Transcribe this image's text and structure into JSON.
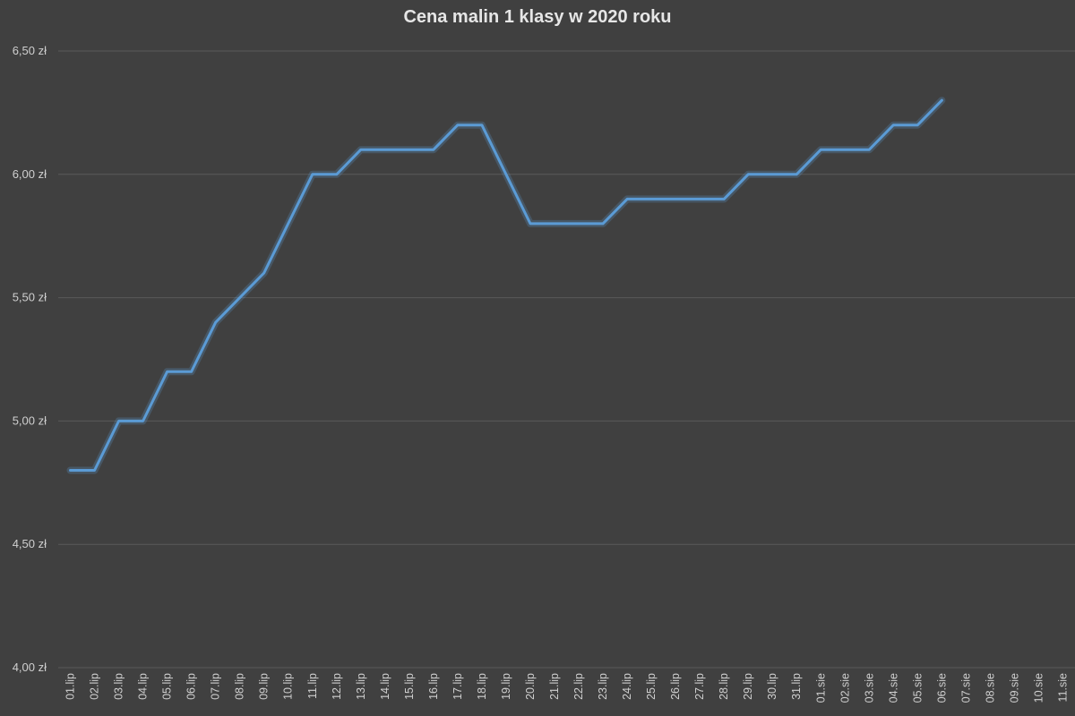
{
  "chart_data": {
    "type": "line",
    "title": "Cena malin 1 klasy w 2020 roku",
    "xlabel": "",
    "ylabel": "",
    "ylim": [
      4.0,
      6.5
    ],
    "y_ticks": [
      4.0,
      4.5,
      5.0,
      5.5,
      6.0,
      6.5
    ],
    "y_tick_labels": [
      "4,00 zł",
      "4,50 zł",
      "5,00 zł",
      "5,50 zł",
      "6,00 zł",
      "6,50 zł"
    ],
    "grid": true,
    "legend": "none",
    "categories": [
      "01.lip",
      "02.lip",
      "03.lip",
      "04.lip",
      "05.lip",
      "06.lip",
      "07.lip",
      "08.lip",
      "09.lip",
      "10.lip",
      "11.lip",
      "12.lip",
      "13.lip",
      "14.lip",
      "15.lip",
      "16.lip",
      "17.lip",
      "18.lip",
      "19.lip",
      "20.lip",
      "21.lip",
      "22.lip",
      "23.lip",
      "24.lip",
      "25.lip",
      "26.lip",
      "27.lip",
      "28.lip",
      "29.lip",
      "30.lip",
      "31.lip",
      "01.sie",
      "02.sie",
      "03.sie",
      "04.sie",
      "05.sie",
      "06.sie",
      "07.sie",
      "08.sie",
      "09.sie",
      "10.sie",
      "11.sie"
    ],
    "series": [
      {
        "color": "#5b9bd5",
        "values": [
          4.8,
          4.8,
          5.0,
          5.0,
          5.2,
          5.2,
          5.4,
          5.5,
          5.6,
          5.8,
          6.0,
          6.0,
          6.1,
          6.1,
          6.1,
          6.1,
          6.2,
          6.2,
          6.0,
          5.8,
          5.8,
          5.8,
          5.8,
          5.9,
          5.9,
          5.9,
          5.9,
          5.9,
          6.0,
          6.0,
          6.0,
          6.1,
          6.1,
          6.1,
          6.2,
          6.2,
          6.3,
          null,
          null,
          null,
          null,
          null
        ]
      }
    ]
  }
}
